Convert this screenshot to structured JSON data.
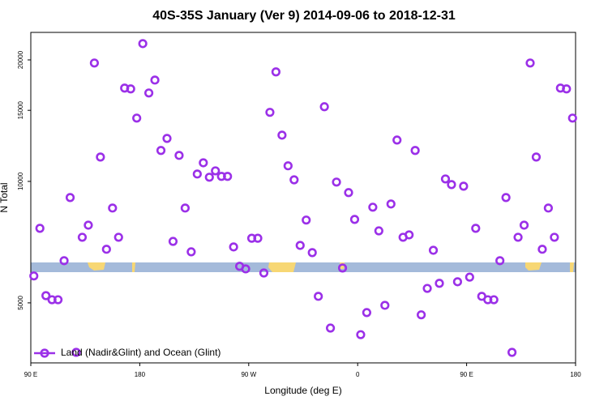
{
  "chart_data": {
    "type": "scatter",
    "title": "40S-35S January (Ver 9)   2014-09-06 to 2018-12-31",
    "x_label": "Longitude (deg E)",
    "y_label": "N Total",
    "log_y": true,
    "legend": "bottom-left",
    "xlim": [
      90,
      540
    ],
    "ylim": [
      3550,
      23400
    ],
    "xticks": [
      {
        "value": 90,
        "label": "90 E"
      },
      180,
      {
        "value": 270,
        "label": "90 W"
      },
      {
        "value": 360,
        "label": "0"
      },
      {
        "value": 450,
        "label": "90 E"
      },
      {
        "value": 540,
        "label": "180"
      }
    ],
    "yticks": [
      5000,
      10000,
      15000,
      20000
    ],
    "x": [
      92.5,
      97.5,
      102.5,
      107.5,
      112.5,
      117.5,
      122.5,
      127.5,
      132.5,
      137.5,
      142.5,
      147.5,
      152.5,
      157.5,
      162.5,
      167.5,
      172.5,
      177.5,
      182.5,
      187.5,
      192.5,
      197.5,
      202.5,
      207.5,
      212.5,
      217.5,
      222.5,
      227.5,
      232.5,
      237.5,
      242.5,
      247.5,
      252.5,
      257.5,
      262.5,
      267.5,
      272.5,
      277.5,
      282.5,
      287.5,
      292.5,
      297.5,
      302.5,
      307.5,
      312.5,
      317.5,
      322.5,
      327.5,
      332.5,
      337.5,
      342.5,
      347.5,
      352.5,
      357.5,
      362.5,
      367.5,
      372.5,
      377.5,
      382.5,
      387.5,
      392.5,
      397.5,
      402.5,
      407.5,
      412.5,
      417.5,
      422.5,
      427.5,
      432.5,
      437.5,
      442.5,
      447.5,
      452.5,
      457.5,
      462.5,
      467.5,
      472.5,
      477.5,
      482.5,
      487.5,
      492.5,
      497.5,
      502.5,
      507.5,
      512.5,
      517.5,
      522.5,
      527.5,
      532.5,
      537.5
    ],
    "series": [
      {
        "name": "Land (Nadir&Glint) and Ocean (Glint)",
        "color": "#9b30e8",
        "values": [
          5830,
          7650,
          5210,
          5090,
          5090,
          6360,
          9120,
          3770,
          7270,
          7790,
          19650,
          11490,
          6790,
          8590,
          7270,
          17030,
          16950,
          14350,
          21950,
          16560,
          17830,
          11930,
          12780,
          7100,
          11600,
          8590,
          6690,
          10430,
          11120,
          10240,
          10620,
          10290,
          10290,
          6880,
          6160,
          6070,
          7230,
          7230,
          5930,
          14830,
          18680,
          13020,
          10930,
          10090,
          6940,
          8020,
          6660,
          5190,
          15310,
          4330,
          9960,
          6100,
          9380,
          8050,
          4170,
          4730,
          8630,
          7540,
          4930,
          8790,
          12660,
          7270,
          7370,
          11930,
          4670,
          5430,
          6750,
          5590,
          10140,
          9820,
          5640,
          9730,
          5790,
          7650,
          5190,
          5090,
          5090,
          6360,
          9120,
          3770,
          7270,
          7790,
          19650,
          11490,
          6790,
          8590,
          7270,
          17030,
          16950,
          14350
        ]
      }
    ]
  }
}
